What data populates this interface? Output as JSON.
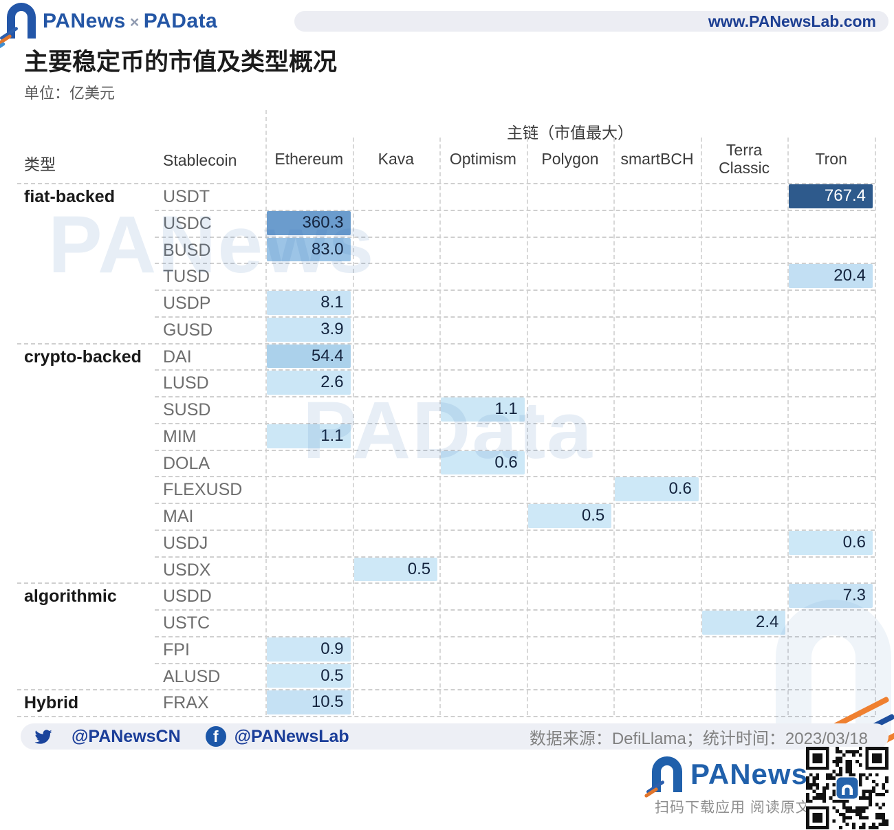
{
  "header": {
    "brand_left": "PANews",
    "brand_times": "×",
    "brand_right": "PAData",
    "site_url": "www.PANewsLab.com",
    "title": "主要稳定币的市值及类型概况",
    "unit": "单位：亿美元"
  },
  "chart_data": {
    "type": "heatmap",
    "title": "主要稳定币的市值及类型概况",
    "unit_label": "单位：亿美元",
    "col_group_header": "主链（市值最大）",
    "row_header_type": "类型",
    "row_header_coin": "Stablecoin",
    "chains": [
      "Ethereum",
      "Kava",
      "Optimism",
      "Polygon",
      "smartBCH",
      "Terra Classic",
      "Tron"
    ],
    "value_range": [
      0,
      767.4
    ],
    "rows": [
      {
        "group": "fiat-backed",
        "coin": "USDT",
        "chain": "Tron",
        "value": 767.4,
        "fill": "#2e5a8c",
        "text": "#ffffff"
      },
      {
        "group": "fiat-backed",
        "coin": "USDC",
        "chain": "Ethereum",
        "value": 360.3,
        "fill": "#6b9ccd"
      },
      {
        "group": "fiat-backed",
        "coin": "BUSD",
        "chain": "Ethereum",
        "value": 83.0,
        "fill": "#9cc4e6"
      },
      {
        "group": "fiat-backed",
        "coin": "TUSD",
        "chain": "Tron",
        "value": 20.4,
        "fill": "#c2dff3"
      },
      {
        "group": "fiat-backed",
        "coin": "USDP",
        "chain": "Ethereum",
        "value": 8.1,
        "fill": "#c8e3f5"
      },
      {
        "group": "fiat-backed",
        "coin": "GUSD",
        "chain": "Ethereum",
        "value": 3.9,
        "fill": "#cae5f6"
      },
      {
        "group": "crypto-backed",
        "coin": "DAI",
        "chain": "Ethereum",
        "value": 54.4,
        "fill": "#abd1eb"
      },
      {
        "group": "crypto-backed",
        "coin": "LUSD",
        "chain": "Ethereum",
        "value": 2.6,
        "fill": "#cbe6f6"
      },
      {
        "group": "crypto-backed",
        "coin": "SUSD",
        "chain": "Optimism",
        "value": 1.1,
        "fill": "#cce7f6"
      },
      {
        "group": "crypto-backed",
        "coin": "MIM",
        "chain": "Ethereum",
        "value": 1.1,
        "fill": "#cce7f6"
      },
      {
        "group": "crypto-backed",
        "coin": "DOLA",
        "chain": "Optimism",
        "value": 0.6,
        "fill": "#cde8f7"
      },
      {
        "group": "crypto-backed",
        "coin": "FLEXUSD",
        "chain": "smartBCH",
        "value": 0.6,
        "fill": "#cde8f7"
      },
      {
        "group": "crypto-backed",
        "coin": "MAI",
        "chain": "Polygon",
        "value": 0.5,
        "fill": "#cee8f7"
      },
      {
        "group": "crypto-backed",
        "coin": "USDJ",
        "chain": "Tron",
        "value": 0.6,
        "fill": "#cde8f7"
      },
      {
        "group": "crypto-backed",
        "coin": "USDX",
        "chain": "Kava",
        "value": 0.5,
        "fill": "#cee8f7"
      },
      {
        "group": "algorithmic",
        "coin": "USDD",
        "chain": "Tron",
        "value": 7.3,
        "fill": "#c8e3f5"
      },
      {
        "group": "algorithmic",
        "coin": "USTC",
        "chain": "Terra Classic",
        "value": 2.4,
        "fill": "#cbe6f6"
      },
      {
        "group": "algorithmic",
        "coin": "FPI",
        "chain": "Ethereum",
        "value": 0.9,
        "fill": "#cde7f7"
      },
      {
        "group": "algorithmic",
        "coin": "ALUSD",
        "chain": "Ethereum",
        "value": 0.5,
        "fill": "#cee8f7"
      },
      {
        "group": "Hybrid",
        "coin": "FRAX",
        "chain": "Ethereum",
        "value": 10.5,
        "fill": "#c5e1f4"
      }
    ]
  },
  "watermarks": {
    "wm1": "PANews",
    "wm2": "PAData"
  },
  "footer": {
    "twitter_handle": "@PANewsCN",
    "facebook_handle": "@PANewsLab",
    "facebook_letter": "f",
    "source_line": "数据来源：DefiLlama；统计时间：2023/03/18",
    "brand_name": "PANews",
    "caption": "扫码下载应用 阅读原文"
  },
  "colors": {
    "accent_blue": "#2456a5",
    "dark_cell": "#2e5a8c",
    "cell_text": "#14243e",
    "bar_bg": "#ecedf3",
    "dash": "#cfcfcf",
    "orange": "#ef8030"
  }
}
